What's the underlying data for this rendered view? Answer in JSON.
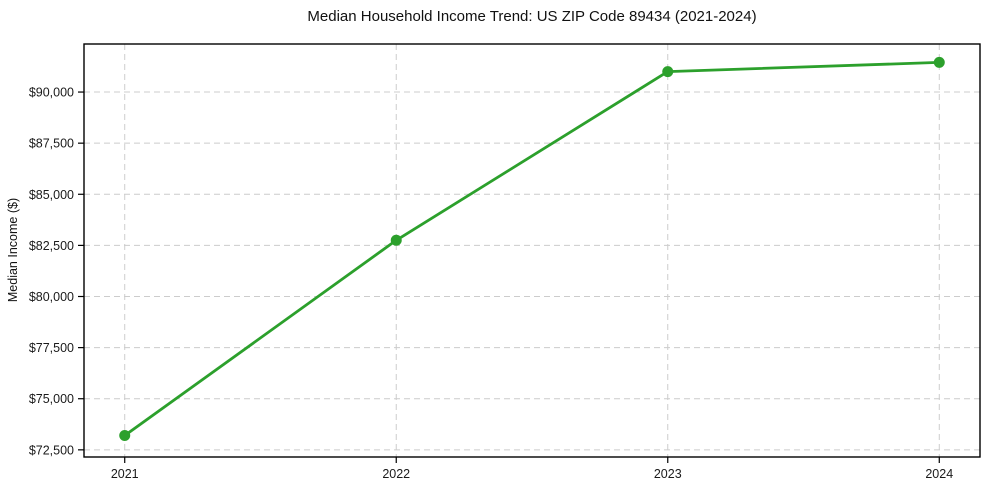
{
  "page": {
    "background_color": "#ffffff",
    "text_color": "#111111"
  },
  "chart_data": {
    "type": "line",
    "title": "Median Household Income Trend: US ZIP Code 89434 (2021-2024)",
    "xlabel": "",
    "ylabel": "Median Income ($)",
    "x": [
      2021,
      2022,
      2023,
      2024
    ],
    "x_tick_labels": [
      "2021",
      "2022",
      "2023",
      "2024"
    ],
    "y_ticks": [
      72500,
      75000,
      77500,
      80000,
      82500,
      85000,
      87500,
      90000
    ],
    "y_tick_labels": [
      "$72,500",
      "$75,000",
      "$77,500",
      "$80,000",
      "$82,500",
      "$85,000",
      "$87,500",
      "$90,000"
    ],
    "series": [
      {
        "name": "Median Household Income",
        "values": [
          73200,
          82750,
          91000,
          91450
        ],
        "color": "#2ca02c",
        "marker": "circle"
      }
    ],
    "xlim": [
      2020.85,
      2024.15
    ],
    "ylim": [
      72150,
      92350
    ],
    "grid": true,
    "grid_style": "dashed",
    "grid_color": "#cccccc",
    "axis_color": "#000000",
    "legend": "none"
  }
}
